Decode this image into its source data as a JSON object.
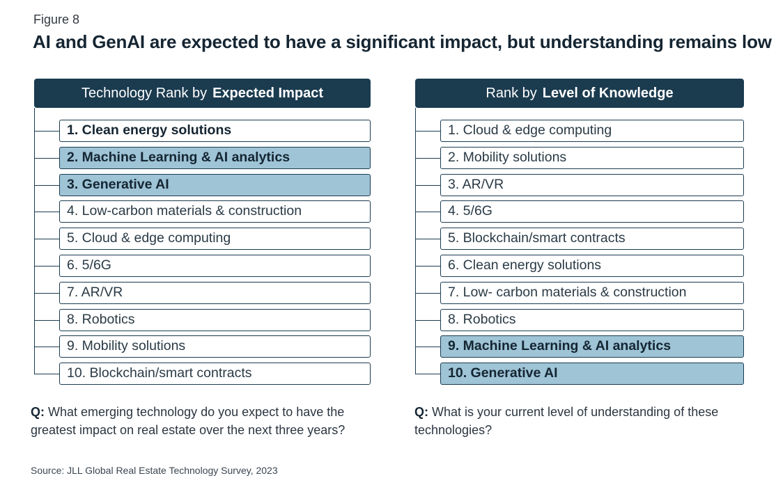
{
  "figure_label": "Figure 8",
  "title": "AI and GenAI are expected to have a significant impact, but understanding remains low",
  "left_panel": {
    "header_prefix": "Technology Rank by",
    "header_bold": "Expected Impact",
    "items": [
      {
        "label": "1. Clean energy solutions",
        "highlighted": false,
        "bold": true
      },
      {
        "label": "2. Machine Learning & AI analytics",
        "highlighted": true,
        "bold": true
      },
      {
        "label": "3. Generative AI",
        "highlighted": true,
        "bold": true
      },
      {
        "label": "4. Low-carbon materials & construction",
        "highlighted": false,
        "bold": false
      },
      {
        "label": "5. Cloud & edge computing",
        "highlighted": false,
        "bold": false
      },
      {
        "label": "6. 5/6G",
        "highlighted": false,
        "bold": false
      },
      {
        "label": "7. AR/VR",
        "highlighted": false,
        "bold": false
      },
      {
        "label": "8. Robotics",
        "highlighted": false,
        "bold": false
      },
      {
        "label": "9. Mobility solutions",
        "highlighted": false,
        "bold": false
      },
      {
        "label": "10. Blockchain/smart contracts",
        "highlighted": false,
        "bold": false
      }
    ],
    "question_prefix": "Q:",
    "question_text": " What emerging technology do you expect to have the greatest impact on real estate over the next three years?"
  },
  "right_panel": {
    "header_prefix": "Rank by",
    "header_bold": "Level of Knowledge",
    "items": [
      {
        "label": "1. Cloud & edge computing",
        "highlighted": false,
        "bold": false
      },
      {
        "label": "2. Mobility solutions",
        "highlighted": false,
        "bold": false
      },
      {
        "label": "3. AR/VR",
        "highlighted": false,
        "bold": false
      },
      {
        "label": "4. 5/6G",
        "highlighted": false,
        "bold": false
      },
      {
        "label": "5. Blockchain/smart contracts",
        "highlighted": false,
        "bold": false
      },
      {
        "label": "6. Clean energy solutions",
        "highlighted": false,
        "bold": false
      },
      {
        "label": "7. Low- carbon materials & construction",
        "highlighted": false,
        "bold": false
      },
      {
        "label": "8. Robotics",
        "highlighted": false,
        "bold": false
      },
      {
        "label": "9. Machine Learning & AI analytics",
        "highlighted": true,
        "bold": true
      },
      {
        "label": "10. Generative AI",
        "highlighted": true,
        "bold": true
      }
    ],
    "question_prefix": "Q:",
    "question_text": " What is your current level of understanding of these technologies?"
  },
  "source": "Source: JLL Global Real Estate Technology Survey, 2023",
  "colors": {
    "header_bg": "#1b3b4f",
    "highlight": "#9ec4d6",
    "text": "#152532"
  }
}
